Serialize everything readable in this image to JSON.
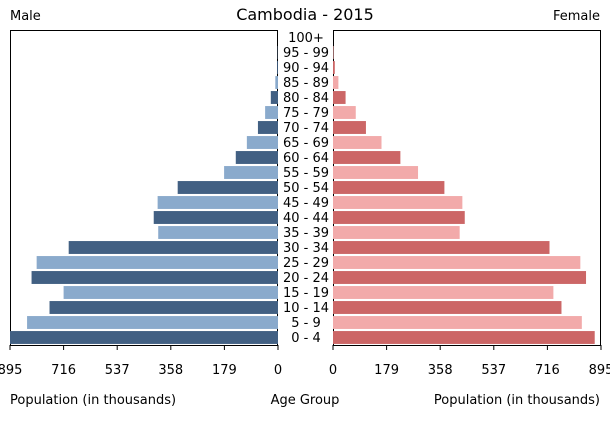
{
  "chart_data": {
    "type": "bar",
    "title": "Cambodia - 2015",
    "male_label": "Male",
    "female_label": "Female",
    "xlabel_left": "Population (in thousands)",
    "xlabel_center": "Age Group",
    "xlabel_right": "Population (in thousands)",
    "xlim": [
      0,
      895
    ],
    "tick_values": [
      0,
      179,
      358,
      537,
      716,
      895
    ],
    "tick_labels_male": [
      "895",
      "716",
      "537",
      "358",
      "179",
      "0"
    ],
    "tick_labels_female": [
      "0",
      "179",
      "358",
      "537",
      "716",
      "895"
    ],
    "categories": [
      "0 - 4",
      "5 - 9",
      "10 - 14",
      "15 - 19",
      "20 - 24",
      "25 - 29",
      "30 - 34",
      "35 - 39",
      "40 - 44",
      "45 - 49",
      "50 - 54",
      "55 - 59",
      "60 - 64",
      "65 - 69",
      "70 - 74",
      "75 - 79",
      "80 - 84",
      "85 - 89",
      "90 - 94",
      "95 - 99",
      "100+"
    ],
    "series": [
      {
        "name": "Male",
        "values": [
          895,
          838,
          763,
          716,
          823,
          806,
          699,
          400,
          415,
          402,
          335,
          180,
          141,
          104,
          67,
          43,
          24,
          9,
          3,
          1,
          0
        ]
      },
      {
        "name": "Female",
        "values": [
          874,
          831,
          763,
          736,
          845,
          826,
          723,
          423,
          440,
          432,
          372,
          284,
          225,
          162,
          110,
          76,
          42,
          18,
          6,
          2,
          0
        ]
      }
    ],
    "colors": {
      "male_dark": "#426083",
      "male_light": "#8aaacc",
      "female_dark": "#cc6666",
      "female_light": "#f2aaaa"
    },
    "grid": false
  }
}
